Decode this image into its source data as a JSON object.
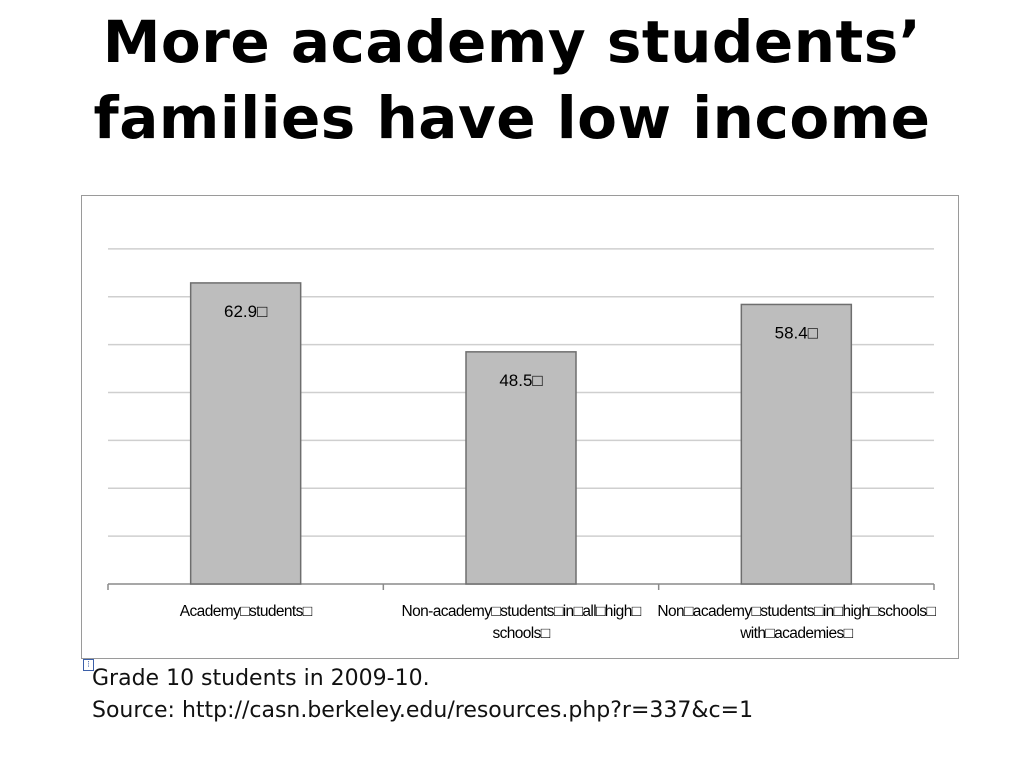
{
  "slide": {
    "title_line1": "More academy students’",
    "title_line2": "families have low income",
    "caption_line1": "Grade 10 students in 2009-10.",
    "caption_line2": "Source: http://casn.berkeley.edu/resources.php?r=337&c=1"
  },
  "chart_data": {
    "type": "bar",
    "categories": [
      "Academy students",
      "Non-academy students in all high schools",
      "Non-academy students in high schools with academies"
    ],
    "category_lines": [
      [
        "Academy□students□"
      ],
      [
        "Non-academy□students□in□all□high□",
        "schools□"
      ],
      [
        "Non□academy□students□in□high□schools□",
        "with□academies□"
      ]
    ],
    "values": [
      62.9,
      48.5,
      58.4
    ],
    "data_labels": [
      "62.9□",
      "48.5□",
      "58.4□"
    ],
    "ylim": [
      0,
      75
    ],
    "grid": true,
    "bar_color": "#bdbdbd",
    "bar_edge_color": "#6e6e6e",
    "grid_color": "#cfcfcf"
  }
}
